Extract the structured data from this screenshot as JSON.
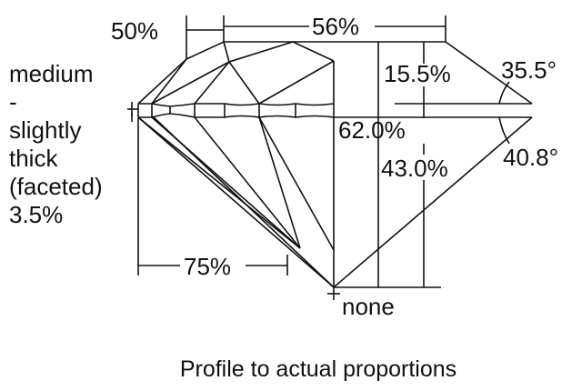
{
  "labels": {
    "crown_table_ratio": "50%",
    "table": "56%",
    "crown_height": "15.5%",
    "crown_angle": "35.5°",
    "total_depth": "62.0%",
    "pavilion_depth": "43.0%",
    "pavilion_angle": "40.8°",
    "lower_half": "75%",
    "culet": "none",
    "girdle": [
      "medium",
      "-",
      "slightly",
      "thick",
      "(faceted)",
      "3.5%"
    ]
  },
  "caption": "Profile to actual proportions",
  "line_color": "#111111"
}
